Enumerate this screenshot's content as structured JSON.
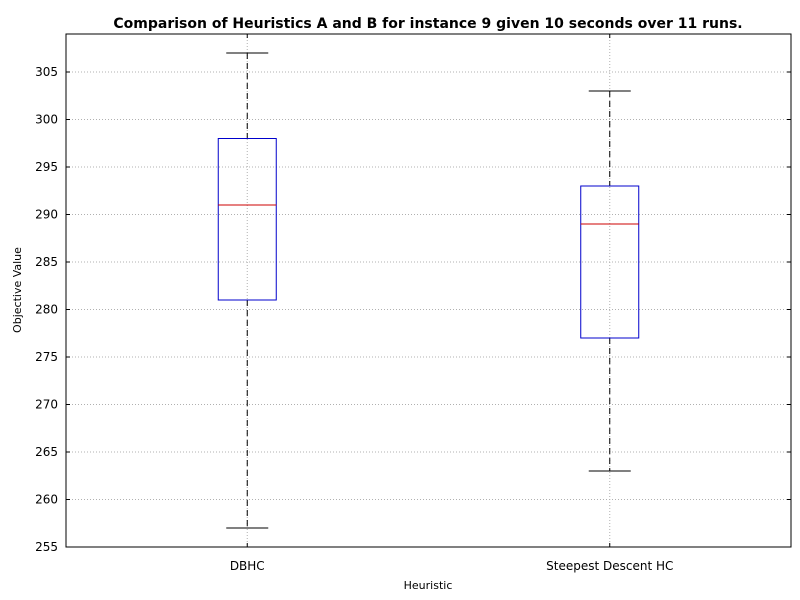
{
  "chart_data": {
    "type": "box",
    "title": "Comparison of Heuristics A and B for instance 9 given 10 seconds over 11 runs.",
    "xlabel": "Heuristic",
    "ylabel": "Objective Value",
    "ylim": [
      255,
      309
    ],
    "yticks": [
      255,
      260,
      265,
      270,
      275,
      280,
      285,
      290,
      295,
      300,
      305
    ],
    "grid": true,
    "categories": [
      "DBHC",
      "Steepest Descent HC"
    ],
    "boxes": [
      {
        "category": "DBHC",
        "whisker_low": 257,
        "q1": 281,
        "median": 291,
        "q3": 298,
        "whisker_high": 307
      },
      {
        "category": "Steepest Descent HC",
        "whisker_low": 263,
        "q1": 277,
        "median": 289,
        "q3": 293,
        "whisker_high": 303
      }
    ],
    "colors": {
      "box": "#0000cc",
      "median": "#cc0000",
      "whisker": "#000000",
      "grid": "#b0b0b0"
    }
  }
}
